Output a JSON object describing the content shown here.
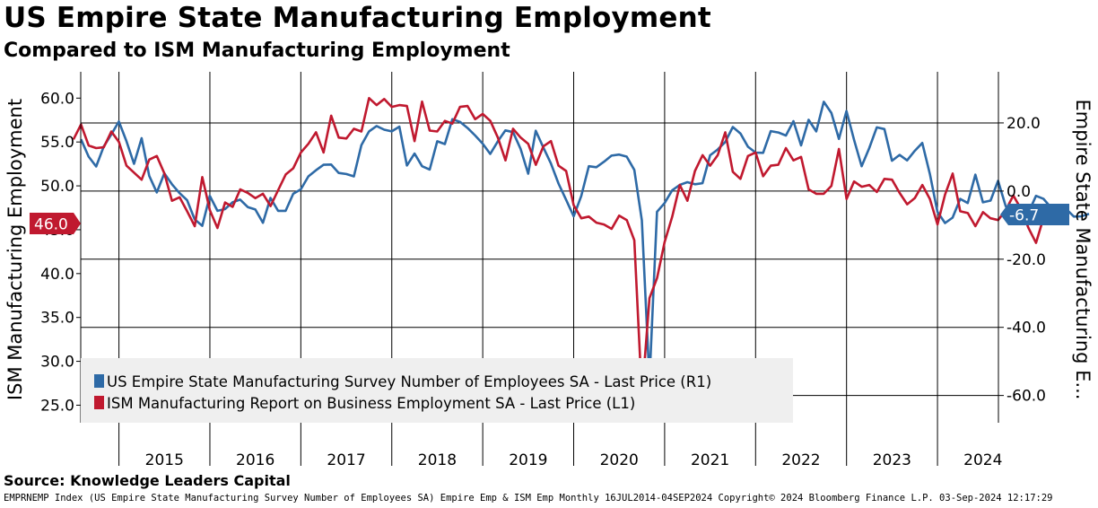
{
  "header": {
    "title": "US Empire State Manufacturing Employment",
    "subtitle": "Compared to ISM Manufacturing Employment"
  },
  "source": "Source: Knowledge Leaders Capital",
  "footer": "EMPRNEMP Index (US Empire State Manufacturing Survey Number of Employees SA) Empire Emp & ISM Emp  Monthly 16JUL2014-04SEP2024  Copyright© 2024 Bloomberg Finance L.P.  03-Sep-2024 12:17:29",
  "colors": {
    "empire": "#2e6aa6",
    "ism": "#c0192f",
    "legend_bg": "#efefef"
  },
  "chart_data": {
    "type": "line",
    "x_range": [
      2014.58,
      2024.67
    ],
    "x_ticks": [
      "2015",
      "2016",
      "2017",
      "2018",
      "2019",
      "2020",
      "2021",
      "2022",
      "2023",
      "2024"
    ],
    "left_axis": {
      "label": "ISM Manufacturing Employment",
      "range": [
        23.0,
        63.0
      ],
      "ticks": [
        "60.0",
        "55.0",
        "50.0",
        "45.0",
        "40.0",
        "35.0",
        "30.0",
        "25.0"
      ]
    },
    "right_axis": {
      "label": "Empire State Manufacturing E...",
      "range": [
        -68.0,
        35.0
      ],
      "ticks": [
        "20.0",
        "0.0",
        "-20.0",
        "-40.0",
        "-60.0"
      ]
    },
    "legend": [
      {
        "label": "US Empire State Manufacturing Survey Number of Employees SA - Last Price (R1)"
      },
      {
        "label": "ISM Manufacturing Report on Business Employment SA - Last Price (L1)"
      }
    ],
    "last_values": {
      "empire": "-6.7",
      "ism": "46.0"
    },
    "series": [
      {
        "name": "US Empire State Manufacturing Survey Number of Employees SA",
        "axis": "right",
        "start": 2014.583,
        "values": [
          15.2,
          10.1,
          7.2,
          13.1,
          16.6,
          20.4,
          14.6,
          8.0,
          15.5,
          4.5,
          -0.4,
          5.2,
          2.0,
          -0.6,
          -2.7,
          -8.3,
          -10.2,
          -1.4,
          -5.8,
          -5.3,
          -3.3,
          -2.5,
          -4.7,
          -5.4,
          -9.3,
          -2.0,
          -5.8,
          -5.8,
          -0.8,
          0.5,
          4.3,
          6.1,
          7.7,
          7.8,
          5.3,
          5.0,
          4.3,
          13.5,
          17.5,
          19.1,
          18.0,
          17.5,
          18.9,
          7.5,
          11.0,
          7.3,
          6.3,
          14.6,
          13.8,
          21.1,
          20.3,
          18.5,
          16.3,
          13.9,
          10.9,
          14.6,
          17.8,
          17.3,
          12.4,
          5.1,
          17.7,
          12.8,
          8.1,
          2.2,
          -2.5,
          -7.4,
          -1.5,
          7.3,
          7.0,
          8.6,
          10.4,
          10.7,
          10.1,
          6.2,
          -8.6,
          -55.7,
          -6.1,
          -3.5,
          0.2,
          1.8,
          2.6,
          2.0,
          2.3,
          10.5,
          12.2,
          14.4,
          18.8,
          16.9,
          13.0,
          11.3,
          11.2,
          17.6,
          17.2,
          16.3,
          20.5,
          13.4,
          20.9,
          17.5,
          26.2,
          22.9,
          15.3,
          23.5,
          15.0,
          7.3,
          12.6,
          18.7,
          18.2,
          8.9,
          10.6,
          9.0,
          11.8,
          14.1,
          5.0,
          -6.1,
          -9.4,
          -7.8,
          -2.3,
          -3.5,
          4.8,
          -3.3,
          -2.8,
          3.0,
          -4.4,
          -7.7,
          -8.9,
          -6.4,
          -1.4,
          -2.3,
          -4.9,
          -4.9,
          -5.3,
          -7.5,
          -7.4,
          -6.7
        ]
      },
      {
        "name": "ISM Manufacturing Report on Business Employment SA",
        "axis": "left",
        "start": 2014.5,
        "values": [
          55.3,
          57.0,
          54.6,
          54.3,
          54.4,
          56.2,
          55.0,
          52.3,
          51.5,
          50.7,
          53.0,
          53.4,
          51.4,
          48.3,
          48.7,
          47.1,
          45.4,
          51.0,
          47.2,
          45.2,
          48.1,
          47.6,
          49.6,
          49.2,
          48.6,
          49.1,
          47.7,
          49.5,
          51.3,
          52.0,
          53.8,
          54.8,
          56.1,
          53.8,
          58.0,
          55.5,
          55.4,
          56.5,
          56.2,
          60.0,
          59.2,
          59.9,
          59.0,
          59.2,
          59.1,
          55.1,
          59.6,
          56.3,
          56.2,
          57.4,
          57.1,
          59.0,
          59.1,
          57.6,
          58.2,
          57.4,
          55.5,
          52.9,
          56.5,
          55.5,
          54.8,
          52.4,
          54.5,
          55.1,
          52.3,
          51.7,
          47.8,
          46.3,
          46.5,
          45.8,
          45.6,
          45.1,
          46.6,
          46.1,
          43.8,
          26.0,
          37.2,
          39.5,
          43.6,
          46.5,
          50.1,
          48.3,
          51.7,
          53.5,
          52.3,
          53.5,
          56.1,
          51.6,
          50.8,
          53.4,
          53.8,
          51.1,
          52.3,
          52.4,
          54.3,
          52.9,
          53.3,
          49.6,
          49.1,
          49.1,
          50.0,
          54.2,
          48.5,
          50.5,
          49.9,
          50.1,
          49.3,
          50.8,
          50.7,
          49.2,
          47.9,
          48.6,
          50.1,
          48.5,
          45.6,
          49.0,
          51.4,
          47.1,
          46.9,
          45.4,
          47.0,
          46.3,
          46.1,
          47.2,
          48.9,
          47.4,
          45.2,
          43.5,
          46.4,
          46.0
        ]
      }
    ]
  }
}
